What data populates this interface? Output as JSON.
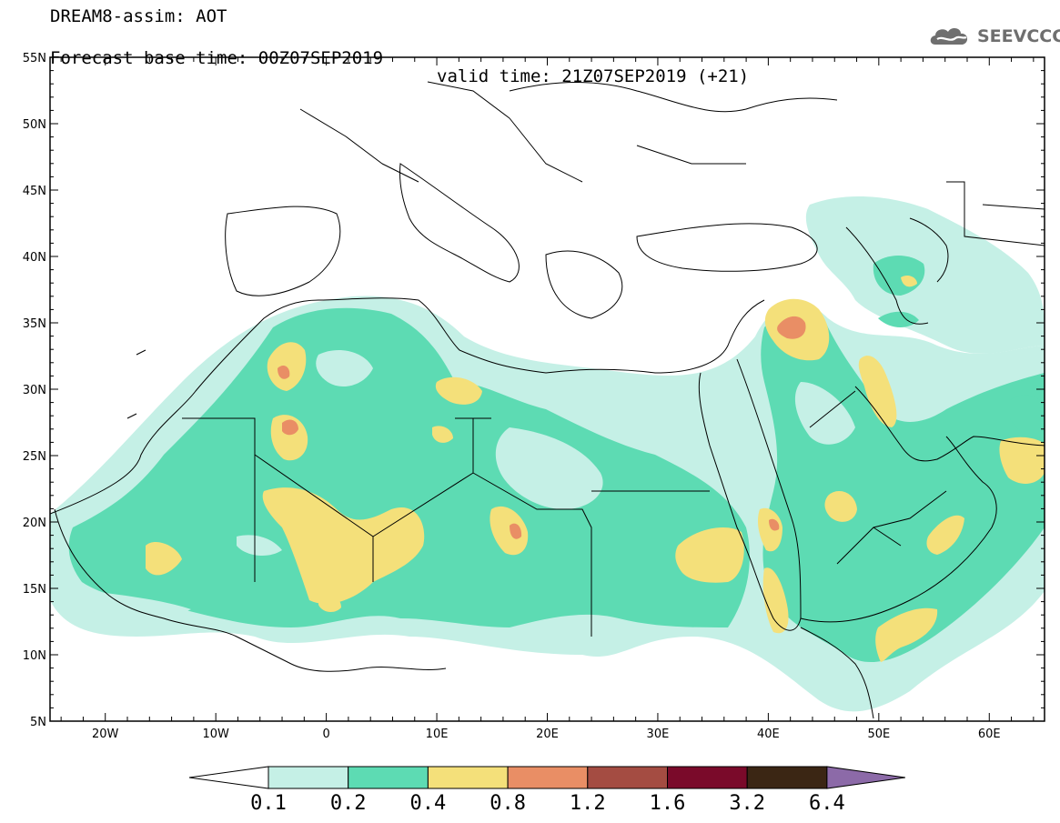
{
  "title": {
    "line1": "DREAM8-assim: AOT",
    "base": "Forecast base time: 00Z07SEP2019",
    "valid": "valid time: 21Z07SEP2019 (+21)"
  },
  "logo": {
    "text": "SEEVCCC",
    "icon": "cloud-icon"
  },
  "map": {
    "lon_range": [
      -25,
      65
    ],
    "lat_range": [
      5,
      55
    ],
    "x_ticks": [
      "20W",
      "10W",
      "0",
      "10E",
      "20E",
      "30E",
      "40E",
      "50E",
      "60E"
    ],
    "y_ticks": [
      "55N",
      "50N",
      "45N",
      "40N",
      "35N",
      "30N",
      "25N",
      "20N",
      "15N",
      "10N",
      "5N"
    ]
  },
  "colorbar": {
    "labels": [
      "0.1",
      "0.2",
      "0.4",
      "0.8",
      "1.2",
      "1.6",
      "3.2",
      "6.4"
    ],
    "colors": [
      "#ffffff",
      "#c5f0e6",
      "#5ddbb3",
      "#f4e07a",
      "#e98e65",
      "#a44c42",
      "#7a0a2a",
      "#3b2614",
      "#8c6aa8"
    ]
  },
  "field_colors": {
    "c1": "#c5f0e6",
    "c2": "#5ddbb3",
    "c3": "#f4e07a",
    "c4": "#e98e65"
  }
}
